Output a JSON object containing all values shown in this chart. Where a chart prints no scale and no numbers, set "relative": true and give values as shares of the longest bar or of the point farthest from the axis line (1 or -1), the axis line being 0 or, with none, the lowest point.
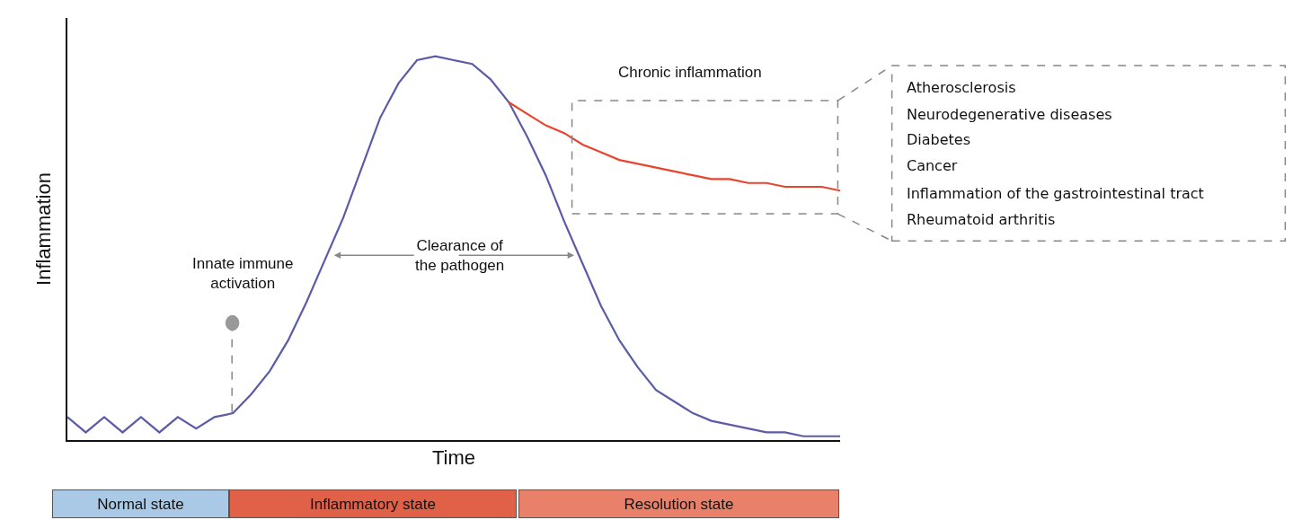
{
  "chart_data": {
    "type": "line",
    "relative": true,
    "xlabel": "Time",
    "ylabel": "Inflammation",
    "marker": "none",
    "line_style": "solid",
    "categories": [
      null,
      null,
      null,
      null,
      null,
      null,
      null,
      null,
      null,
      null,
      null,
      null,
      null,
      null,
      null,
      null,
      null,
      null,
      null,
      null,
      null,
      null,
      null,
      null,
      null,
      null,
      null,
      null,
      null,
      null,
      null,
      null,
      null,
      null,
      null,
      null,
      null,
      null,
      null,
      null,
      null,
      null,
      null
    ],
    "series": [
      {
        "color": "#5b5ba8",
        "values": [
          0.06,
          0.02,
          0.06,
          0.02,
          0.06,
          0.02,
          0.06,
          0.03,
          0.06,
          0.07,
          0.12,
          0.18,
          0.26,
          0.36,
          0.47,
          0.58,
          0.71,
          0.84,
          0.93,
          0.99,
          1.0,
          0.99,
          0.98,
          0.94,
          0.88,
          0.79,
          0.69,
          0.57,
          0.46,
          0.35,
          0.26,
          0.19,
          0.13,
          0.1,
          0.07,
          0.05,
          0.04,
          0.03,
          0.02,
          0.02,
          0.01,
          0.01,
          0.01
        ]
      },
      {
        "color": "#e8442e",
        "values": [
          null,
          null,
          null,
          null,
          null,
          null,
          null,
          null,
          null,
          null,
          null,
          null,
          null,
          null,
          null,
          null,
          null,
          null,
          null,
          null,
          null,
          null,
          null,
          null,
          0.88,
          0.85,
          0.82,
          0.8,
          0.77,
          0.75,
          0.73,
          0.72,
          0.71,
          0.7,
          0.69,
          0.68,
          0.68,
          0.67,
          0.67,
          0.66,
          0.66,
          0.66,
          0.65
        ]
      }
    ],
    "annotations": [
      "Chronic inflammation",
      "Atherosclerosis",
      "Neurodegenerative diseases",
      "Diabetes",
      "Cancer",
      "Inflammation of the gastrointestinal tract",
      "Rheumatoid arthritis",
      "Innate immune\nactivation",
      "Clearance of\nthe pathogen",
      "Normal state",
      "Inflammatory state",
      "Resolution state"
    ]
  }
}
